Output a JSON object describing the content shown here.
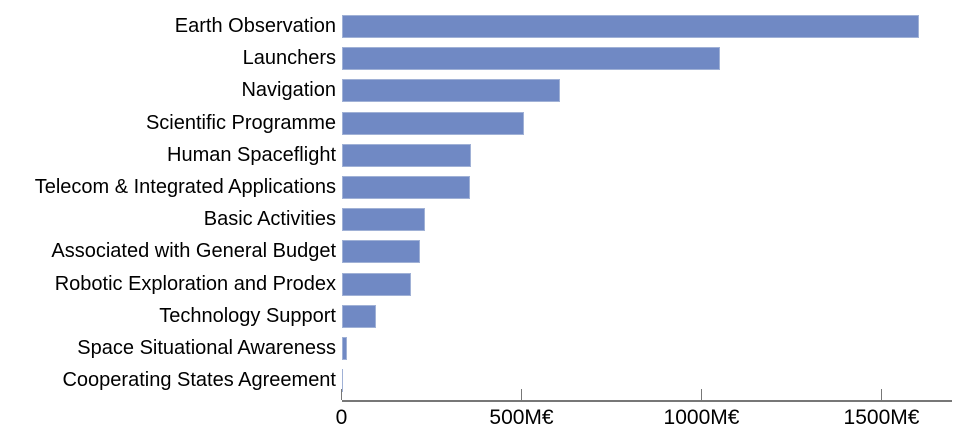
{
  "chart_data": {
    "type": "bar",
    "orientation": "horizontal",
    "title": "",
    "xlabel": "",
    "ylabel": "",
    "unit": "M€",
    "categories": [
      "Earth Observation",
      "Launchers",
      "Navigation",
      "Scientific Programme",
      "Human Spaceflight",
      "Telecom & Integrated Applications",
      "Basic Activities",
      "Associated with General Budget",
      "Robotic Exploration and Prodex",
      "Technology Support",
      "Space Situational Awareness",
      "Cooperating States Agreement"
    ],
    "values": [
      1603,
      1050,
      608,
      506,
      361,
      358,
      231,
      217,
      192,
      97,
      14,
      4
    ],
    "x_ticks": [
      {
        "value": 0,
        "label": "0"
      },
      {
        "value": 500,
        "label": "500M€"
      },
      {
        "value": 1000,
        "label": "1000M€"
      },
      {
        "value": 1500,
        "label": "1500M€"
      }
    ],
    "xlim": [
      0,
      1700
    ],
    "grid": false,
    "legend": false,
    "colors": {
      "bar_fill": "#7089c4",
      "axis_line": "#777777",
      "tick_mark": "#777777",
      "label_text": "#000000",
      "background": "#ffffff"
    }
  }
}
